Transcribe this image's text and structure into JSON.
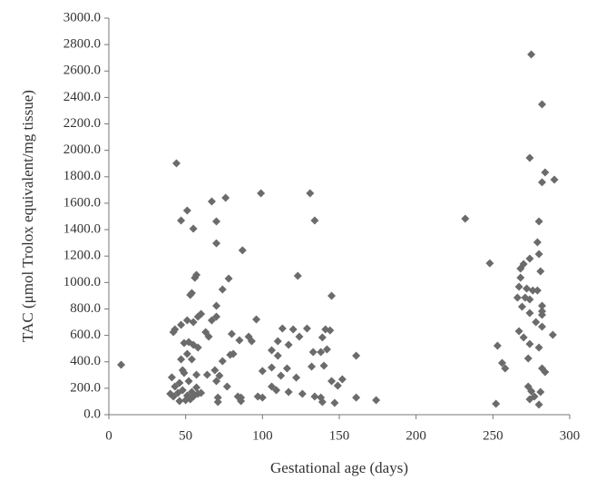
{
  "chart_data": {
    "type": "scatter",
    "x_label": "Gestational age (days)",
    "y_label": "TAC (μmol Trolox equivalent/mg tissue)",
    "color": "#6b6b6b",
    "grid": false,
    "xlim": [
      0,
      300
    ],
    "xticks": [
      0,
      50,
      100,
      150,
      200,
      250,
      300
    ],
    "ylim": [
      0,
      3000
    ],
    "yticks": [
      {
        "value": 0,
        "label": "0.0"
      },
      {
        "value": 200,
        "label": "200.0"
      },
      {
        "value": 400,
        "label": "400.0"
      },
      {
        "value": 600,
        "label": "600.0"
      },
      {
        "value": 800,
        "label": "800.0"
      },
      {
        "value": 1000,
        "label": "1000.0"
      },
      {
        "value": 1200,
        "label": "1200.0"
      },
      {
        "value": 1400,
        "label": "1400.0"
      },
      {
        "value": 1600,
        "label": "1600.0"
      },
      {
        "value": 1800,
        "label": "1800.0"
      },
      {
        "value": 2000,
        "label": "2000.0"
      },
      {
        "value": 2200,
        "label": "2200.0"
      },
      {
        "value": 2400,
        "label": "2400.0"
      },
      {
        "value": 2600,
        "label": "2600.0"
      },
      {
        "value": 2800,
        "label": "2800.0"
      },
      {
        "value": 3000,
        "label": "3000.0"
      }
    ],
    "x": [
      8,
      44,
      47,
      51,
      55,
      57,
      56,
      54,
      53,
      43,
      42,
      47,
      51,
      55,
      58,
      60,
      49,
      52,
      55,
      58,
      51,
      54,
      47,
      48,
      49,
      46,
      41,
      43,
      40,
      42,
      45,
      48,
      51,
      54,
      55,
      58,
      50,
      53,
      46,
      57,
      60,
      57,
      52,
      67,
      76,
      70,
      70,
      87,
      78,
      74,
      70,
      70,
      67,
      63,
      65,
      80,
      85,
      74,
      79,
      91,
      93,
      96,
      81,
      69,
      72,
      64,
      70,
      77,
      71,
      71,
      84,
      86,
      86,
      97,
      100,
      99,
      100,
      131,
      134,
      123,
      145,
      113,
      120,
      129,
      141,
      144,
      110,
      117,
      124,
      139,
      106,
      110,
      133,
      138,
      142,
      161,
      106,
      116,
      112,
      132,
      122,
      140,
      152,
      145,
      149,
      106,
      109,
      117,
      126,
      134,
      138,
      139,
      147,
      161,
      174,
      232,
      248,
      253,
      256,
      258,
      252,
      275,
      282,
      274,
      284,
      290,
      282,
      280,
      279,
      274,
      280,
      270,
      268,
      281,
      268,
      267,
      272,
      276,
      279,
      266,
      271,
      269,
      274,
      282,
      282,
      274,
      282,
      278,
      267,
      282,
      289,
      270,
      274,
      280,
      273,
      282,
      284,
      273,
      275,
      274,
      281,
      280,
      277
    ],
    "y": [
      378,
      1902,
      1469,
      1545,
      1407,
      1057,
      1036,
      920,
      906,
      645,
      625,
      680,
      714,
      700,
      741,
      762,
      542,
      549,
      529,
      508,
      460,
      419,
      419,
      336,
      316,
      240,
      282,
      213,
      158,
      137,
      165,
      185,
      144,
      172,
      137,
      158,
      110,
      117,
      103,
      206,
      165,
      302,
      254,
      1613,
      1641,
      1462,
      1297,
      1243,
      1030,
      947,
      824,
      741,
      714,
      625,
      590,
      611,
      563,
      405,
      453,
      590,
      556,
      721,
      460,
      336,
      295,
      302,
      254,
      213,
      130,
      96,
      137,
      130,
      103,
      137,
      130,
      1675,
      330,
      1675,
      1469,
      1050,
      899,
      652,
      645,
      652,
      645,
      638,
      556,
      529,
      590,
      584,
      487,
      446,
      474,
      474,
      494,
      446,
      357,
      350,
      295,
      364,
      281,
      371,
      268,
      254,
      220,
      213,
      185,
      172,
      158,
      137,
      130,
      96,
      89,
      130,
      110,
      1483,
      1146,
      522,
      391,
      350,
      82,
      2725,
      2348,
      1943,
      1833,
      1778,
      1758,
      1462,
      1304,
      1181,
      1215,
      1140,
      1105,
      1085,
      1037,
      968,
      954,
      940,
      940,
      886,
      886,
      817,
      872,
      824,
      783,
      769,
      755,
      700,
      632,
      666,
      604,
      584,
      535,
      508,
      426,
      350,
      323,
      213,
      178,
      117,
      172,
      76,
      137
    ]
  }
}
